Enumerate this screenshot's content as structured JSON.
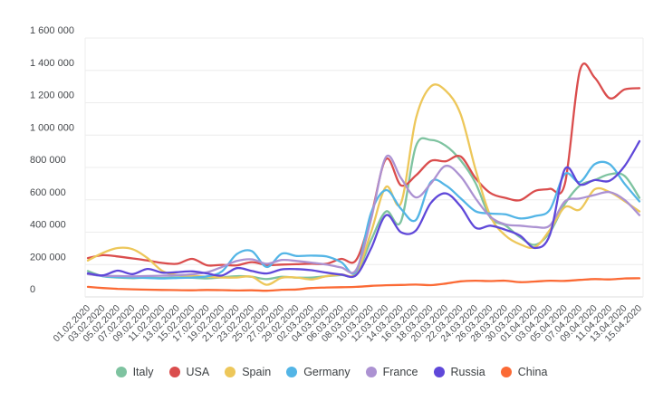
{
  "chart_data": {
    "type": "line",
    "title": "",
    "xlabel": "",
    "ylabel": "",
    "ylim": [
      0,
      1600000
    ],
    "grid": "horizontal",
    "legend_position": "bottom",
    "background_color": "#ffffff",
    "x_label_rotation": -45,
    "y_tick_values": [
      0,
      200000,
      400000,
      600000,
      800000,
      1000000,
      1200000,
      1400000,
      1600000
    ],
    "y_tick_labels": [
      "0",
      "200 000",
      "400 000",
      "600 000",
      "800 000",
      "1 000 000",
      "1 200 000",
      "1 400 000",
      "1 600 000"
    ],
    "x_tick_labels": [
      "01.02.2020",
      "03.02.2020",
      "05.02.2020",
      "07.02.2020",
      "09.02.2020",
      "11.02.2020",
      "13.02.2020",
      "15.02.2020",
      "17.02.2020",
      "19.02.2020",
      "21.02.2020",
      "23.02.2020",
      "25.02.2020",
      "27.02.2020",
      "29.02.2020",
      "02.03.2020",
      "04.03.2020",
      "06.03.2020",
      "08.03.2020",
      "10.03.2020",
      "12.03.2020",
      "14.03.2020",
      "16.03.2020",
      "18.03.2020",
      "20.03.2020",
      "22.03.2020",
      "24.03.2020",
      "26.03.2020",
      "28.03.2020",
      "30.03.2020",
      "01.04.2020",
      "03.04.2020",
      "05.04.2020",
      "07.04.2020",
      "09.04.2020",
      "11.04.2020",
      "13.04.2020",
      "15.04.2020"
    ],
    "series": [
      {
        "name": "Italy",
        "color": "#7ec3a0",
        "values": [
          160000,
          128000,
          120000,
          116000,
          120000,
          117000,
          121000,
          118000,
          114000,
          121000,
          128000,
          124000,
          110000,
          124000,
          119000,
          120000,
          128000,
          135000,
          142000,
          350000,
          528000,
          465000,
          930000,
          970000,
          935000,
          845000,
          705000,
          490000,
          442000,
          368000,
          322000,
          400000,
          575000,
          688000,
          722000,
          758000,
          748000,
          612000
        ]
      },
      {
        "name": "USA",
        "color": "#da4d4d",
        "values": [
          240000,
          258000,
          250000,
          238000,
          225000,
          210000,
          205000,
          235000,
          195000,
          198000,
          195000,
          215000,
          197000,
          200000,
          202000,
          205000,
          205000,
          235000,
          228000,
          500000,
          852000,
          690000,
          750000,
          840000,
          838000,
          868000,
          735000,
          642000,
          612000,
          598000,
          655000,
          668000,
          700000,
          1398000,
          1355000,
          1228000,
          1282000,
          1290000
        ]
      },
      {
        "name": "Spain",
        "color": "#edc75a",
        "values": [
          225000,
          272000,
          302000,
          295000,
          240000,
          160000,
          135000,
          130000,
          125000,
          120000,
          120000,
          125000,
          75000,
          118000,
          120000,
          108000,
          128000,
          138000,
          148000,
          400000,
          680000,
          578000,
          1100000,
          1300000,
          1275000,
          1130000,
          790000,
          500000,
          380000,
          325000,
          308000,
          415000,
          555000,
          540000,
          665000,
          648000,
          592000,
          528000
        ]
      },
      {
        "name": "Germany",
        "color": "#53b5e6",
        "values": [
          142000,
          128000,
          122000,
          119000,
          117000,
          114000,
          117000,
          120000,
          127000,
          158000,
          265000,
          283000,
          185000,
          267000,
          253000,
          255000,
          250000,
          215000,
          158000,
          520000,
          660000,
          545000,
          475000,
          710000,
          690000,
          610000,
          530000,
          515000,
          510000,
          485000,
          500000,
          540000,
          760000,
          710000,
          820000,
          820000,
          700000,
          590000
        ]
      },
      {
        "name": "France",
        "color": "#ac92d2",
        "values": [
          140000,
          131000,
          129000,
          127000,
          129000,
          131000,
          134000,
          140000,
          152000,
          185000,
          222000,
          232000,
          205000,
          228000,
          222000,
          212000,
          200000,
          182000,
          168000,
          480000,
          865000,
          735000,
          615000,
          700000,
          810000,
          745000,
          610000,
          495000,
          448000,
          440000,
          432000,
          442000,
          590000,
          608000,
          630000,
          648000,
          600000,
          505000
        ]
      },
      {
        "name": "Russia",
        "color": "#5f48d9",
        "values": [
          146000,
          133000,
          162000,
          141000,
          173000,
          150000,
          153000,
          158000,
          145000,
          132000,
          178000,
          160000,
          145000,
          170000,
          172000,
          165000,
          150000,
          138000,
          135000,
          300000,
          505000,
          400000,
          410000,
          580000,
          640000,
          560000,
          428000,
          440000,
          415000,
          378000,
          302000,
          385000,
          790000,
          695000,
          722000,
          718000,
          808000,
          962000
        ]
      },
      {
        "name": "China",
        "color": "#fb6a35",
        "values": [
          62000,
          55000,
          50000,
          47000,
          45000,
          43000,
          42000,
          41000,
          43000,
          42000,
          40000,
          41000,
          38000,
          44000,
          46000,
          55000,
          58000,
          60000,
          62000,
          68000,
          72000,
          74000,
          76000,
          73000,
          82000,
          96000,
          100000,
          98000,
          100000,
          91000,
          95000,
          100000,
          99000,
          105000,
          110000,
          108000,
          114000,
          115000
        ]
      }
    ],
    "style": {
      "grid_color": "#ececec",
      "axis_line_color": "#dcdcde",
      "label_color": "#43464a",
      "line_width": 2.3
    }
  }
}
